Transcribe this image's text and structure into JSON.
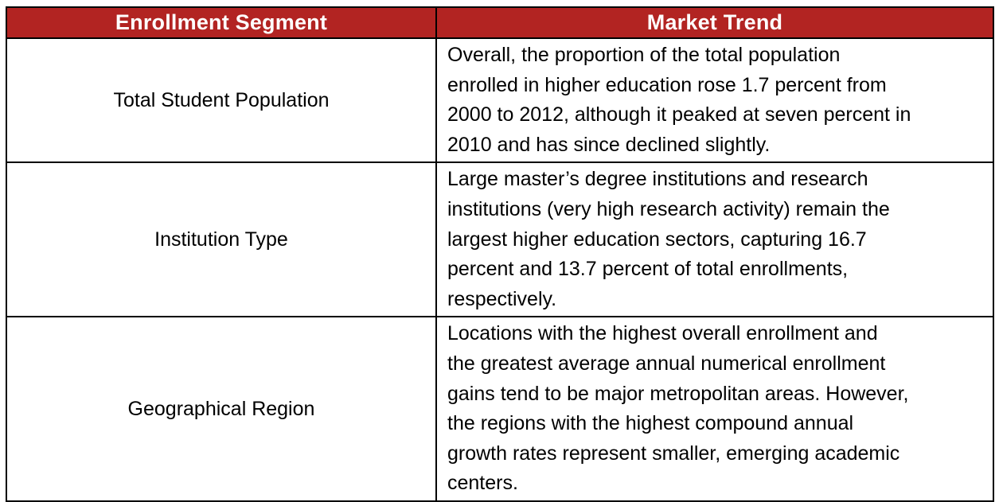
{
  "table": {
    "columns": [
      {
        "label": "Enrollment Segment"
      },
      {
        "label": "Market Trend"
      }
    ],
    "rows": [
      {
        "segment": "Total Student Population",
        "trend": "Overall, the proportion of the total population\nenrolled in higher education rose 1.7 percent from\n2000 to 2012, although it peaked at seven percent in\n2010 and has since declined slightly."
      },
      {
        "segment": "Institution Type",
        "trend": "Large master’s degree institutions and research\ninstitutions (very high research activity) remain the\nlargest higher education sectors, capturing 16.7\npercent and 13.7 percent of total enrollments,\nrespectively."
      },
      {
        "segment": "Geographical Region",
        "trend": "Locations with the highest overall enrollment and\nthe greatest average annual numerical enrollment\ngains tend to be major metropolitan areas. However,\nthe regions with the highest compound annual\ngrowth rates represent smaller, emerging academic\ncenters."
      }
    ],
    "colors": {
      "header_bg": "#B22422",
      "header_text": "#FFFFFF",
      "border": "#000000",
      "body_text": "#000000"
    }
  }
}
